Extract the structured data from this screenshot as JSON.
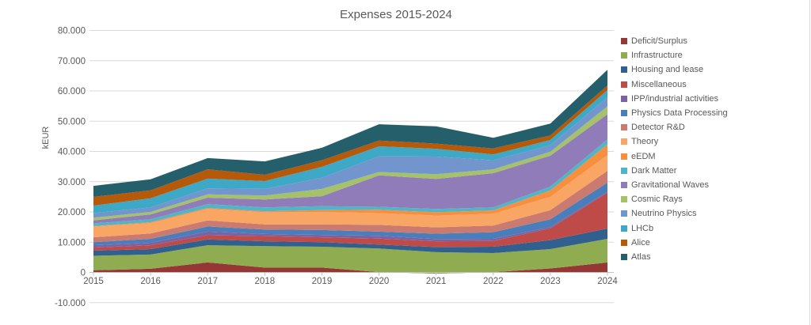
{
  "chart_data": {
    "type": "area",
    "stacked": true,
    "title": "Expenses 2015-2024",
    "xlabel": "",
    "ylabel": "kEUR",
    "unit": "kEUR",
    "grid": true,
    "legend_position": "right",
    "ylim": [
      -10000,
      80000
    ],
    "y_ticks": [
      {
        "value": -10000,
        "label": "-10.000"
      },
      {
        "value": 0,
        "label": "0"
      },
      {
        "value": 10000,
        "label": "10.000"
      },
      {
        "value": 20000,
        "label": "20.000"
      },
      {
        "value": 30000,
        "label": "30.000"
      },
      {
        "value": 40000,
        "label": "40.000"
      },
      {
        "value": 50000,
        "label": "50.000"
      },
      {
        "value": 60000,
        "label": "60.000"
      },
      {
        "value": 70000,
        "label": "70.000"
      },
      {
        "value": 80000,
        "label": "80.000"
      }
    ],
    "categories": [
      "2015",
      "2016",
      "2017",
      "2018",
      "2019",
      "2020",
      "2021",
      "2022",
      "2023",
      "2024"
    ],
    "series": [
      {
        "name": "Deficit/Surplus",
        "color": "#953735",
        "values": [
          700,
          1200,
          3300,
          1600,
          1600,
          100,
          -400,
          100,
          1300,
          3300
        ]
      },
      {
        "name": "Infrastructure",
        "color": "#8FAC51",
        "values": [
          4800,
          4700,
          5700,
          7100,
          6900,
          7800,
          7100,
          6300,
          6400,
          7800
        ]
      },
      {
        "name": "Housing and lease",
        "color": "#31608F",
        "values": [
          1700,
          1800,
          1900,
          1600,
          1500,
          1300,
          1700,
          2100,
          3000,
          3400
        ]
      },
      {
        "name": "Miscellaneous",
        "color": "#BE4B48",
        "values": [
          1000,
          1300,
          1400,
          1700,
          1600,
          2000,
          1900,
          1900,
          3900,
          11900
        ]
      },
      {
        "name": "IPP/industrial activities",
        "color": "#7D62A3",
        "values": [
          800,
          800,
          1200,
          700,
          800,
          900,
          700,
          700,
          400,
          300
        ]
      },
      {
        "name": "Physics Data Processing",
        "color": "#4A7EBB",
        "values": [
          1000,
          1300,
          1700,
          1500,
          1600,
          1400,
          1800,
          2200,
          2600,
          3000
        ]
      },
      {
        "name": "Detector R&D",
        "color": "#CA7A6F",
        "values": [
          1600,
          1800,
          2000,
          1700,
          1900,
          2200,
          2100,
          2200,
          3000,
          3900
        ]
      },
      {
        "name": "Theory",
        "color": "#F9A564",
        "values": [
          3600,
          3400,
          3800,
          4000,
          4100,
          3900,
          3900,
          3900,
          4400,
          5200
        ]
      },
      {
        "name": "eEDM",
        "color": "#F78F3F",
        "values": [
          100,
          300,
          300,
          300,
          600,
          1100,
          1100,
          1100,
          2100,
          3500
        ]
      },
      {
        "name": "Dark Matter",
        "color": "#52B5C6",
        "values": [
          900,
          1000,
          1300,
          1300,
          1300,
          1000,
          1100,
          1000,
          1300,
          1700
        ]
      },
      {
        "name": "Gravitational Waves",
        "color": "#8F7CB8",
        "values": [
          1000,
          1600,
          2100,
          2600,
          3300,
          10400,
          9900,
          11300,
          10200,
          8300
        ]
      },
      {
        "name": "Cosmic Rays",
        "color": "#A5C16A",
        "values": [
          900,
          800,
          1100,
          1300,
          2400,
          1100,
          1600,
          1300,
          1300,
          2600
        ]
      },
      {
        "name": "Neutrino Physics",
        "color": "#7295CE",
        "values": [
          1500,
          1500,
          2000,
          2200,
          3700,
          5200,
          5800,
          3000,
          2100,
          3000
        ]
      },
      {
        "name": "LHCb",
        "color": "#3EA9C6",
        "values": [
          2500,
          3000,
          3200,
          2600,
          3600,
          3300,
          2600,
          1900,
          1800,
          2400
        ]
      },
      {
        "name": "Alice",
        "color": "#B65908",
        "values": [
          2900,
          2600,
          3100,
          2100,
          2200,
          1900,
          1700,
          2000,
          1500,
          1500
        ]
      },
      {
        "name": "Atlas",
        "color": "#255F6B",
        "values": [
          3600,
          3700,
          3700,
          4400,
          4100,
          5400,
          5700,
          3500,
          3900,
          5200
        ]
      }
    ]
  },
  "colors": {
    "text": "#595959",
    "gridline": "#D9D9D9",
    "axis_line": "#BFBFBF",
    "background": "#FFFFFF",
    "chart_border": "#D9D9D9"
  }
}
